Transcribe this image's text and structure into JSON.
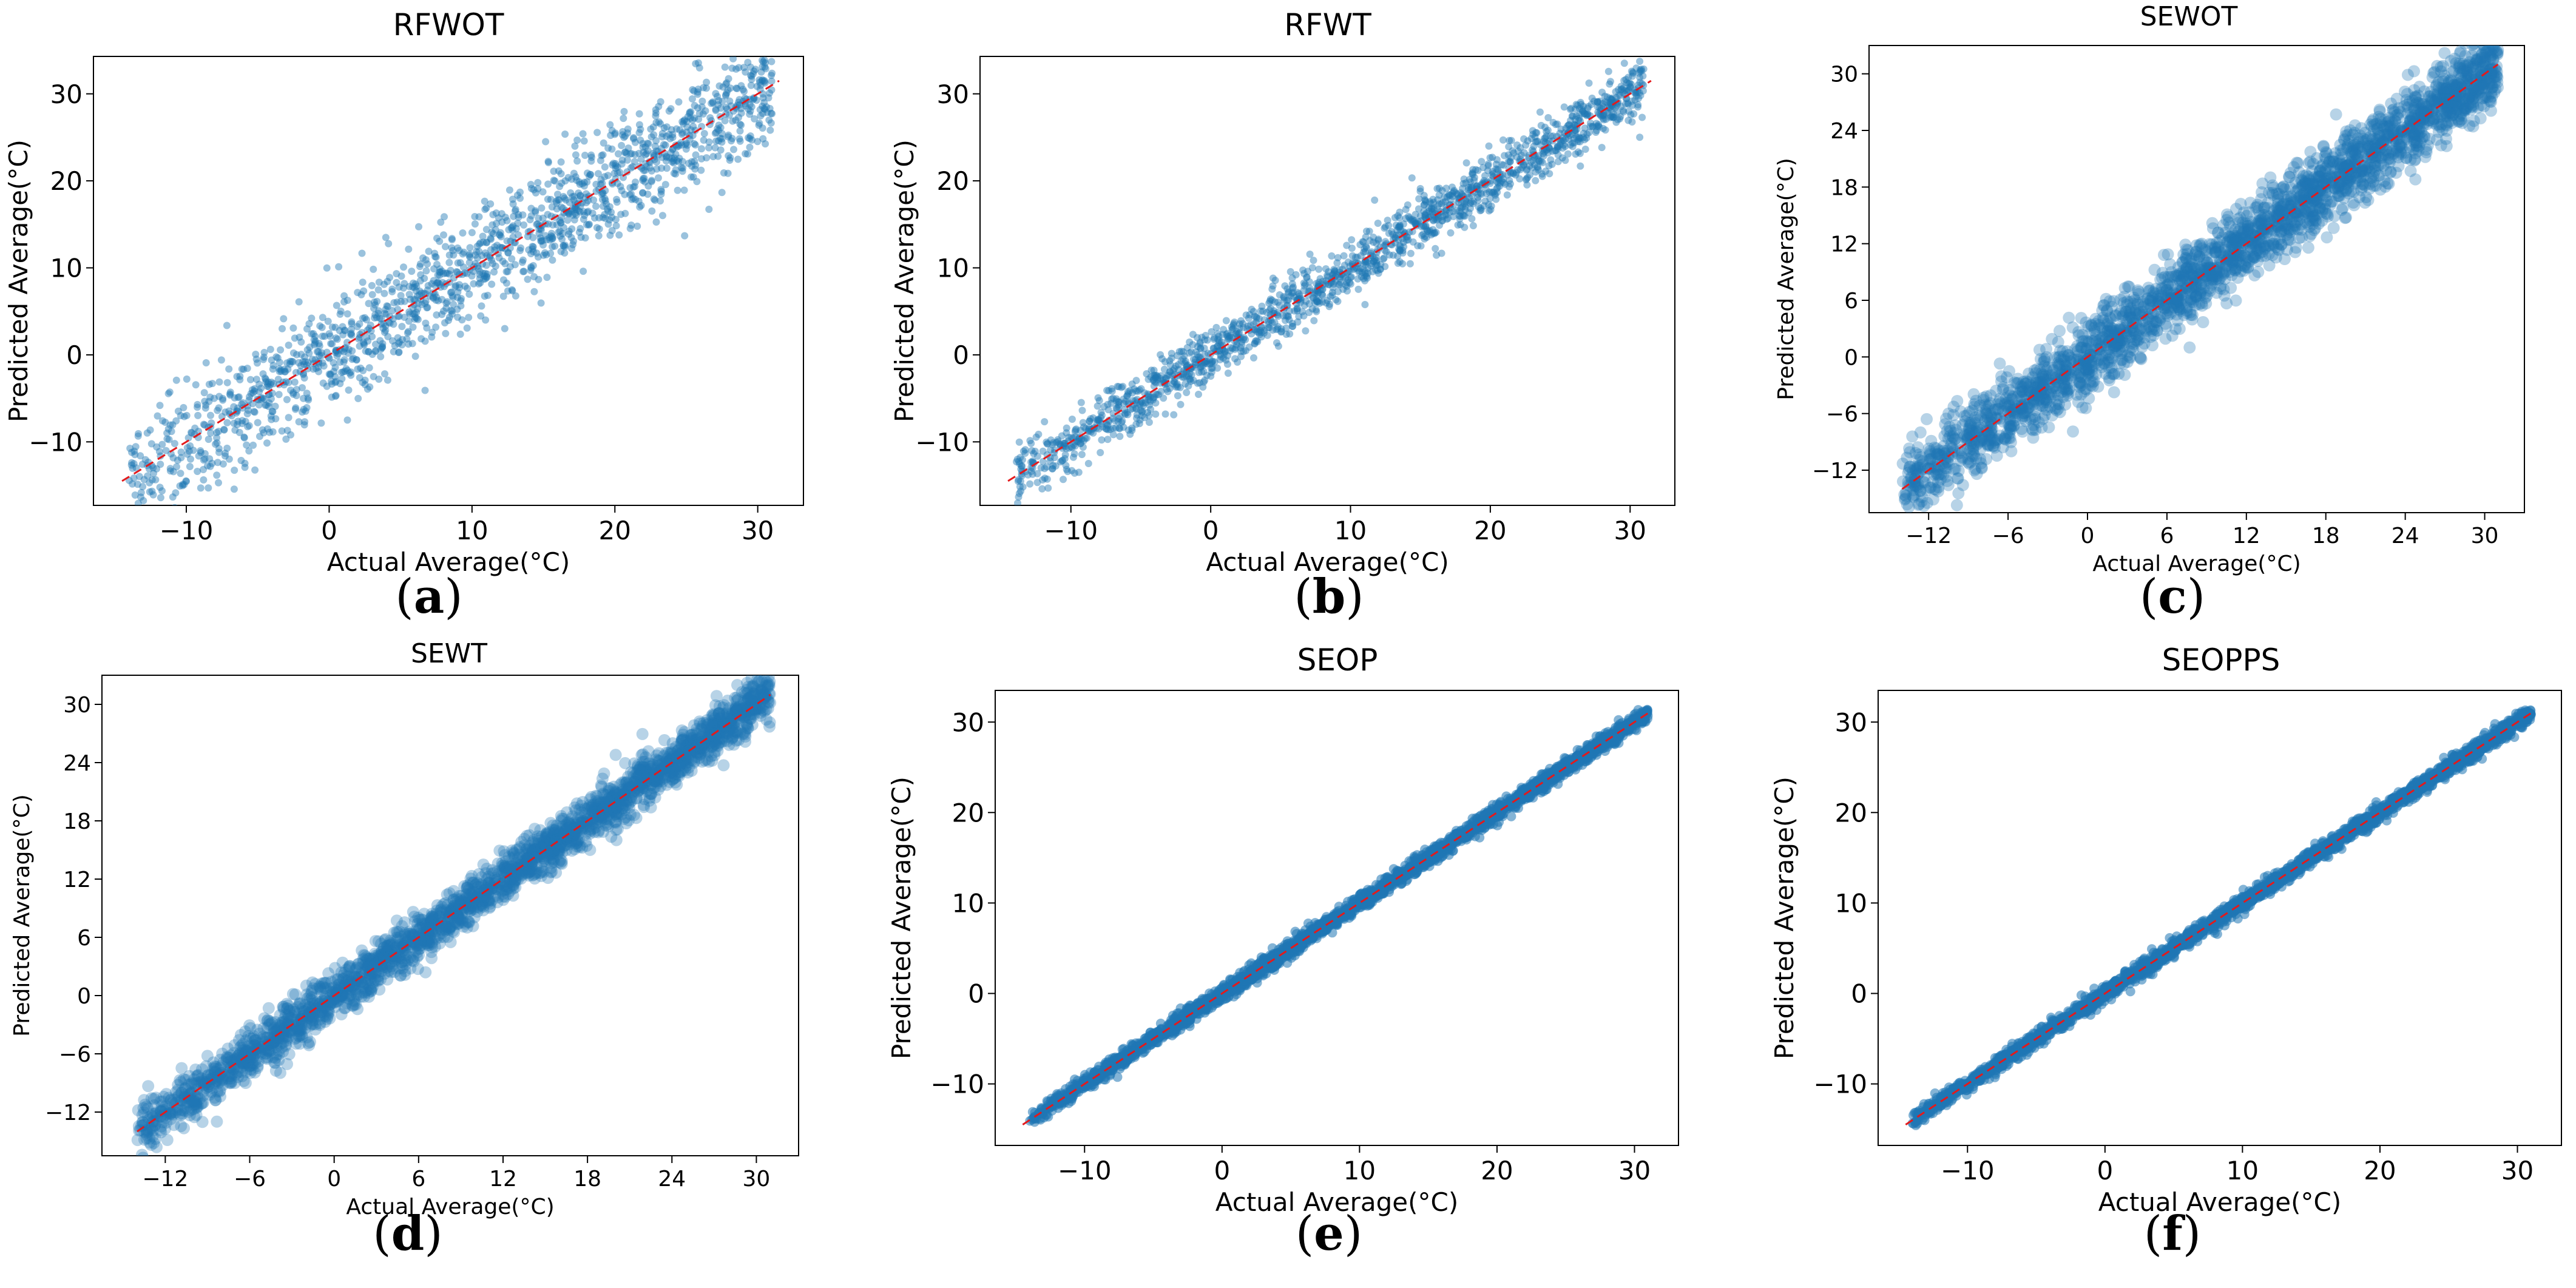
{
  "colors": {
    "points": "#1f77b4",
    "diagonal": "#e31a1c",
    "axes": "#000000"
  },
  "chart_data": [
    {
      "type": "scatter",
      "title": "RFWOT",
      "xlabel": "Actual Average(°C)",
      "ylabel": "Predicted Average(°C)",
      "xlim": [
        -16.5,
        33.2
      ],
      "ylim": [
        -17.3,
        34.3
      ],
      "xticks": [
        -10,
        0,
        10,
        20,
        30
      ],
      "yticks": [
        -10,
        0,
        10,
        20,
        30
      ],
      "xtick_labels": [
        "−10",
        "0",
        "10",
        "20",
        "30"
      ],
      "ytick_labels": [
        "−10",
        "0",
        "10",
        "20",
        "30"
      ],
      "diagonal": [
        -14.5,
        31.5
      ],
      "x_range": [
        -14,
        31
      ],
      "spread": 3.2,
      "n_points": 1600,
      "alpha": 0.45,
      "point_size": "small",
      "label": "(a)"
    },
    {
      "type": "scatter",
      "title": "RFWT",
      "xlabel": "Actual Average(°C)",
      "ylabel": "Predicted Average(°C)",
      "xlim": [
        -16.5,
        33.2
      ],
      "ylim": [
        -17.3,
        34.3
      ],
      "xticks": [
        -10,
        0,
        10,
        20,
        30
      ],
      "yticks": [
        -10,
        0,
        10,
        20,
        30
      ],
      "xtick_labels": [
        "−10",
        "0",
        "10",
        "20",
        "30"
      ],
      "ytick_labels": [
        "−10",
        "0",
        "10",
        "20",
        "30"
      ],
      "diagonal": [
        -14.5,
        31.5
      ],
      "x_range": [
        -14,
        31
      ],
      "spread": 1.6,
      "n_points": 1600,
      "alpha": 0.45,
      "point_size": "small",
      "label": "(b)"
    },
    {
      "type": "scatter",
      "title": "SEWOT",
      "xlabel": "Actual Average(°C)",
      "ylabel": "Predicted Average(°C)",
      "xlim": [
        -16.5,
        33.0
      ],
      "ylim": [
        -16.5,
        33.0
      ],
      "xticks": [
        -12,
        -6,
        0,
        6,
        12,
        18,
        24,
        30
      ],
      "yticks": [
        -12,
        -6,
        0,
        6,
        12,
        18,
        24,
        30
      ],
      "xtick_labels": [
        "−12",
        "−6",
        "0",
        "6",
        "12",
        "18",
        "24",
        "30"
      ],
      "ytick_labels": [
        "−12",
        "−6",
        "0",
        "6",
        "12",
        "18",
        "24",
        "30"
      ],
      "diagonal": [
        -14,
        31
      ],
      "x_range": [
        -14,
        31
      ],
      "spread": 2.0,
      "n_points": 2600,
      "alpha": 0.32,
      "point_size": "large",
      "label": "(c)"
    },
    {
      "type": "scatter",
      "title": "SEWT",
      "xlabel": "Actual Average(°C)",
      "ylabel": "Predicted Average(°C)",
      "xlim": [
        -16.5,
        33.0
      ],
      "ylim": [
        -16.5,
        33.0
      ],
      "xticks": [
        -12,
        -6,
        0,
        6,
        12,
        18,
        24,
        30
      ],
      "yticks": [
        -12,
        -6,
        0,
        6,
        12,
        18,
        24,
        30
      ],
      "xtick_labels": [
        "−12",
        "−6",
        "0",
        "6",
        "12",
        "18",
        "24",
        "30"
      ],
      "ytick_labels": [
        "−12",
        "−6",
        "0",
        "6",
        "12",
        "18",
        "24",
        "30"
      ],
      "diagonal": [
        -14,
        31
      ],
      "x_range": [
        -14,
        31
      ],
      "spread": 1.3,
      "n_points": 2600,
      "alpha": 0.32,
      "point_size": "large",
      "label": "(d)"
    },
    {
      "type": "scatter",
      "title": "SEOP",
      "xlabel": "Actual Average(°C)",
      "ylabel": "Predicted Average(°C)",
      "xlim": [
        -16.5,
        33.2
      ],
      "ylim": [
        -16.8,
        33.5
      ],
      "xticks": [
        -10,
        0,
        10,
        20,
        30
      ],
      "yticks": [
        -10,
        0,
        10,
        20,
        30
      ],
      "xtick_labels": [
        "−10",
        "0",
        "10",
        "20",
        "30"
      ],
      "ytick_labels": [
        "−10",
        "0",
        "10",
        "20",
        "30"
      ],
      "diagonal": [
        -14.5,
        31.2
      ],
      "x_range": [
        -14,
        31
      ],
      "spread": 0.45,
      "n_points": 2600,
      "alpha": 0.55,
      "point_size": "medium",
      "label": "(e)"
    },
    {
      "type": "scatter",
      "title": "SEOPPS",
      "xlabel": "Actual Average(°C)",
      "ylabel": "Predicted Average(°C)",
      "xlim": [
        -16.5,
        33.2
      ],
      "ylim": [
        -16.8,
        33.5
      ],
      "xticks": [
        -10,
        0,
        10,
        20,
        30
      ],
      "yticks": [
        -10,
        0,
        10,
        20,
        30
      ],
      "xtick_labels": [
        "−10",
        "0",
        "10",
        "20",
        "30"
      ],
      "ytick_labels": [
        "−10",
        "0",
        "10",
        "20",
        "30"
      ],
      "diagonal": [
        -14.5,
        31.2
      ],
      "x_range": [
        -14,
        31
      ],
      "spread": 0.45,
      "n_points": 2600,
      "alpha": 0.55,
      "point_size": "medium",
      "label": "(f)"
    }
  ]
}
